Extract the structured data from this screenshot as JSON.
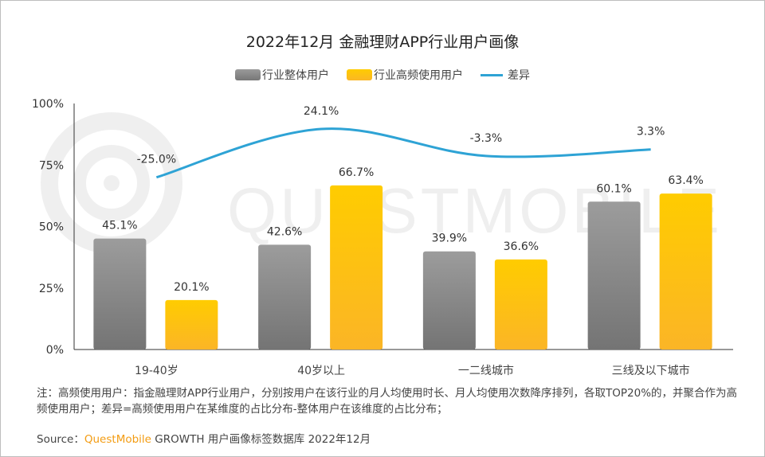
{
  "watermark": "QUESTMOBILE",
  "colors": {
    "overall": "#8a8a8a",
    "high_freq": "#fcc30a",
    "diff": "#2ea3d5"
  },
  "chart_data": {
    "type": "bar+line",
    "title": "2022年12月 金融理财APP行业用户画像",
    "categories": [
      "19-40岁",
      "40岁以上",
      "一二线城市",
      "三线及以下城市"
    ],
    "series": [
      {
        "name": "行业整体用户",
        "type": "bar",
        "values": [
          45.1,
          42.6,
          39.9,
          60.1
        ],
        "labels": [
          "45.1%",
          "42.6%",
          "39.9%",
          "60.1%"
        ]
      },
      {
        "name": "行业高频使用用户",
        "type": "bar",
        "values": [
          20.1,
          66.7,
          36.6,
          63.4
        ],
        "labels": [
          "20.1%",
          "66.7%",
          "36.6%",
          "63.4%"
        ]
      },
      {
        "name": "差异",
        "type": "line",
        "axis": "secondary",
        "values": [
          -25.0,
          24.1,
          -3.3,
          3.3
        ],
        "labels": [
          "-25.0%",
          "24.1%",
          "-3.3%",
          "3.3%"
        ]
      }
    ],
    "ylim": [
      0,
      100
    ],
    "y2lim": [
      -200,
      50
    ],
    "yticks": [
      "0%",
      "25%",
      "50%",
      "75%",
      "100%"
    ],
    "grid": false,
    "legend": "top-center"
  },
  "note": "注：高频使用用户：指金融理财APP行业用户，分别按用户在该行业的月人均使用时长、月人均使用次数降序排列，各取TOP20%的，并聚合作为高频使用用户；差异=高频使用用户在某维度的占比分布-整体用户在该维度的占比分布；",
  "source": {
    "label": "Source：",
    "brand": "QuestMobile",
    "text": " GROWTH 用户画像标签数据库 2022年12月"
  }
}
